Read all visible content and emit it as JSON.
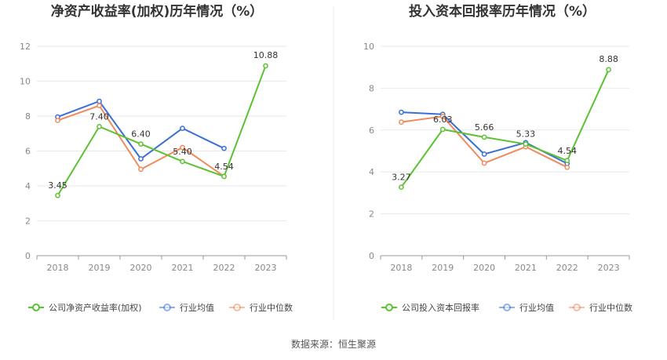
{
  "source": "数据来源：恒生聚源",
  "chart_data": [
    {
      "type": "line",
      "title": "净资产收益率(加权)历年情况（%）",
      "categories": [
        "2018",
        "2019",
        "2020",
        "2021",
        "2022",
        "2023"
      ],
      "ylim": [
        0,
        12
      ],
      "yticks": [
        0,
        2,
        4,
        6,
        8,
        10,
        12
      ],
      "grid": true,
      "legend_position": "bottom",
      "series": [
        {
          "name": "公司净资产收益率(加权)",
          "color": "#5bc232",
          "values": [
            3.45,
            7.4,
            6.4,
            5.4,
            4.54,
            10.88
          ],
          "labels": [
            "3.45",
            "7.40",
            "6.40",
            "5.40",
            "4.54",
            "10.88"
          ]
        },
        {
          "name": "行业均值",
          "color": "#3b6fd8",
          "values": [
            7.95,
            8.85,
            5.55,
            7.3,
            6.15,
            null
          ]
        },
        {
          "name": "行业中位数",
          "color": "#f08a5d",
          "values": [
            7.75,
            8.6,
            4.95,
            6.2,
            4.55,
            null
          ]
        }
      ]
    },
    {
      "type": "line",
      "title": "投入资本回报率历年情况（%）",
      "categories": [
        "2018",
        "2019",
        "2020",
        "2021",
        "2022",
        "2023"
      ],
      "ylim": [
        0,
        10
      ],
      "yticks": [
        0,
        2,
        4,
        6,
        8,
        10
      ],
      "grid": true,
      "legend_position": "bottom",
      "series": [
        {
          "name": "公司投入资本回报率",
          "color": "#5bc232",
          "values": [
            3.27,
            6.03,
            5.66,
            5.33,
            4.54,
            8.88
          ],
          "labels": [
            "3.27",
            "6.03",
            "5.66",
            "5.33",
            "4.54",
            "8.88"
          ]
        },
        {
          "name": "行业均值",
          "color": "#3b6fd8",
          "values": [
            6.85,
            6.75,
            4.85,
            5.4,
            4.4,
            null
          ]
        },
        {
          "name": "行业中位数",
          "color": "#f08a5d",
          "values": [
            6.38,
            6.65,
            4.42,
            5.2,
            4.22,
            null
          ]
        }
      ]
    }
  ]
}
